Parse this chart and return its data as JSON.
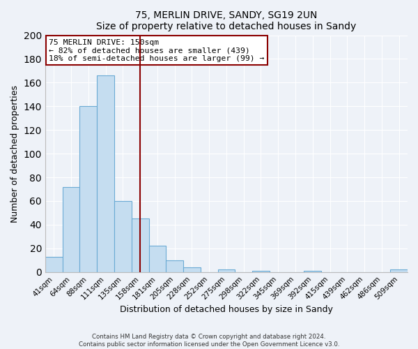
{
  "title": "75, MERLIN DRIVE, SANDY, SG19 2UN",
  "subtitle": "Size of property relative to detached houses in Sandy",
  "xlabel": "Distribution of detached houses by size in Sandy",
  "ylabel": "Number of detached properties",
  "bar_color": "#c5ddf0",
  "bar_edge_color": "#6aaad4",
  "categories": [
    "41sqm",
    "64sqm",
    "88sqm",
    "111sqm",
    "135sqm",
    "158sqm",
    "181sqm",
    "205sqm",
    "228sqm",
    "252sqm",
    "275sqm",
    "298sqm",
    "322sqm",
    "345sqm",
    "369sqm",
    "392sqm",
    "415sqm",
    "439sqm",
    "462sqm",
    "486sqm",
    "509sqm"
  ],
  "values": [
    13,
    72,
    140,
    166,
    60,
    45,
    22,
    10,
    4,
    0,
    2,
    0,
    1,
    0,
    0,
    1,
    0,
    0,
    0,
    0,
    2
  ],
  "vline_x": 5,
  "vline_color": "#8b0000",
  "annotation_title": "75 MERLIN DRIVE: 150sqm",
  "annotation_line1": "← 82% of detached houses are smaller (439)",
  "annotation_line2": "18% of semi-detached houses are larger (99) →",
  "ylim": [
    0,
    200
  ],
  "yticks": [
    0,
    20,
    40,
    60,
    80,
    100,
    120,
    140,
    160,
    180,
    200
  ],
  "footer_line1": "Contains HM Land Registry data © Crown copyright and database right 2024.",
  "footer_line2": "Contains public sector information licensed under the Open Government Licence v3.0.",
  "background_color": "#eef2f8",
  "plot_bg_color": "#eef2f8",
  "grid_color": "#ffffff"
}
